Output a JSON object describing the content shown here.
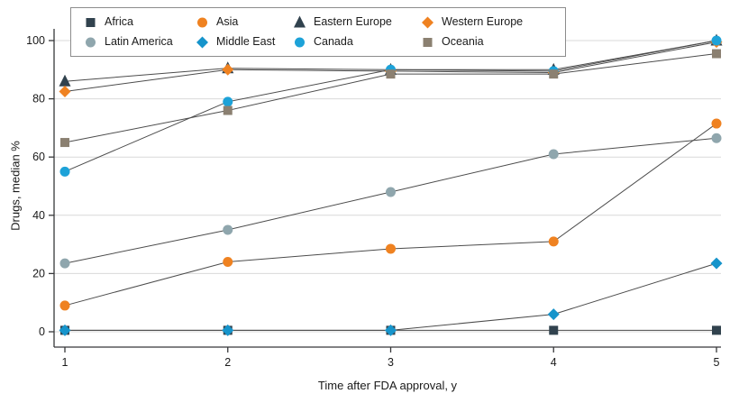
{
  "chart_data": {
    "type": "line",
    "title": "",
    "xlabel": "Time after FDA approval, y",
    "ylabel": "Drugs, median %",
    "x": [
      1,
      2,
      3,
      4,
      5
    ],
    "xlim": [
      1,
      5
    ],
    "ylim": [
      0,
      100
    ],
    "yticks": [
      0,
      20,
      40,
      60,
      80,
      100
    ],
    "grid": "horizontal",
    "legend_position": "top-left-box",
    "line_color": "#4c4c4c",
    "grid_color": "#d9d9d9",
    "axis_color": "#37383a",
    "series": [
      {
        "name": "Africa",
        "marker": "square",
        "color": "#31424e",
        "values": [
          0.5,
          0.5,
          0.5,
          0.5,
          0.5
        ]
      },
      {
        "name": "Asia",
        "marker": "circle",
        "color": "#ef8221",
        "values": [
          9,
          24,
          28.5,
          31,
          71.5
        ]
      },
      {
        "name": "Eastern Europe",
        "marker": "triangle",
        "color": "#31424e",
        "values": [
          86,
          90.5,
          90,
          90,
          100
        ]
      },
      {
        "name": "Western Europe",
        "marker": "diamond",
        "color": "#ef8221",
        "values": [
          82.5,
          90,
          89.5,
          89,
          99.5
        ]
      },
      {
        "name": "Latin America",
        "marker": "circle",
        "color": "#8fa6ad",
        "values": [
          23.5,
          35,
          48,
          61,
          66.5
        ]
      },
      {
        "name": "Middle East",
        "marker": "diamond",
        "color": "#1694cb",
        "values": [
          0.5,
          0.5,
          0.5,
          6,
          23.5
        ]
      },
      {
        "name": "Canada",
        "marker": "circle",
        "color": "#1da2d8",
        "values": [
          55,
          79,
          90,
          89.5,
          100
        ]
      },
      {
        "name": "Oceania",
        "marker": "square",
        "color": "#8b8071",
        "values": [
          65,
          76,
          88.5,
          88.5,
          95.5
        ]
      }
    ]
  }
}
